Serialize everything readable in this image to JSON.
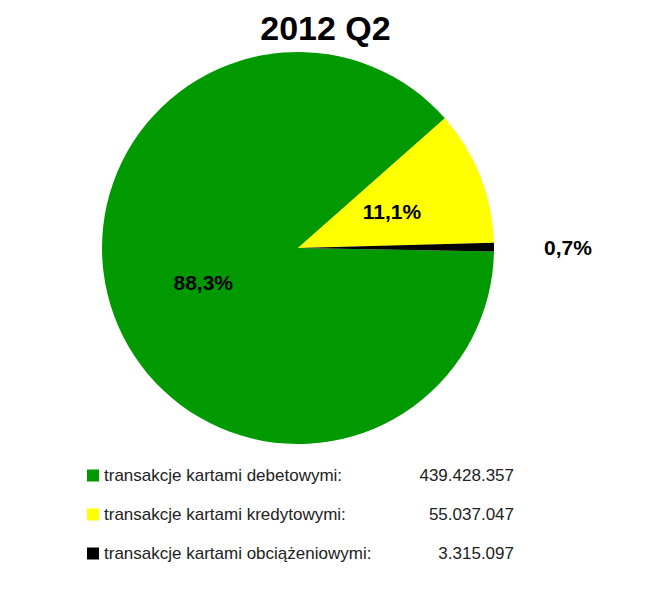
{
  "chart_data": {
    "type": "pie",
    "title": "2012 Q2",
    "categories": [
      "transakcje kartami debetowymi:",
      "transakcje kartami kredytowymi:",
      "transakcje kartami obciążeniowymi:"
    ],
    "values": [
      88.3,
      11.1,
      0.7
    ],
    "value_labels": [
      "88,3%",
      "11,1%",
      "0,7%"
    ],
    "counts": [
      439428357,
      55037047,
      3315097
    ],
    "count_labels": [
      "439.428.357",
      "55.037.047",
      "3.315.097"
    ],
    "colors": [
      "#009a00",
      "#ffff00",
      "#000000"
    ],
    "data_labels": true,
    "legend": "bottom"
  }
}
